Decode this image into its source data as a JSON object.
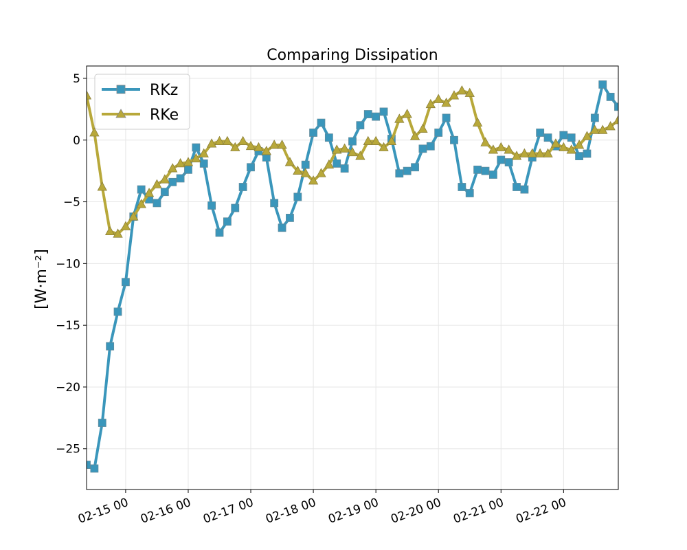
{
  "chart_data": {
    "type": "line",
    "title": "Comparing Dissipation",
    "xlabel": "",
    "ylabel": "[W·m⁻²]",
    "grid": true,
    "legend_position": "upper-left",
    "x_ticks": [
      {
        "label": "02-15 00",
        "day": 15
      },
      {
        "label": "02-16 00",
        "day": 16
      },
      {
        "label": "02-17 00",
        "day": 17
      },
      {
        "label": "02-18 00",
        "day": 18
      },
      {
        "label": "02-19 00",
        "day": 19
      },
      {
        "label": "02-20 00",
        "day": 20
      },
      {
        "label": "02-21 00",
        "day": 21
      },
      {
        "label": "02-22 00",
        "day": 22
      }
    ],
    "y_ticks": [
      -25,
      -20,
      -15,
      -10,
      -5,
      0,
      5
    ],
    "xlim": [
      14.375,
      22.875
    ],
    "ylim": [
      -28.3,
      6.0
    ],
    "x_start": 14.375,
    "x_step": 0.125,
    "series": [
      {
        "name": "RKz",
        "color": "#3a96bb",
        "marker": "square",
        "values": [
          -26.3,
          -26.6,
          -22.9,
          -16.7,
          -13.9,
          -11.5,
          -6.2,
          -4.0,
          -4.8,
          -5.1,
          -4.2,
          -3.4,
          -3.1,
          -2.4,
          -0.6,
          -1.9,
          -5.3,
          -7.5,
          -6.6,
          -5.5,
          -3.8,
          -2.2,
          -0.9,
          -1.4,
          -5.1,
          -7.1,
          -6.3,
          -4.6,
          -2.0,
          0.6,
          1.4,
          0.2,
          -1.9,
          -2.3,
          -0.1,
          1.2,
          2.1,
          1.9,
          2.3,
          0.1,
          -2.7,
          -2.5,
          -2.2,
          -0.7,
          -0.5,
          0.6,
          1.8,
          0.0,
          -3.8,
          -4.3,
          -2.4,
          -2.5,
          -2.8,
          -1.6,
          -1.8,
          -3.8,
          -4.0,
          -1.4,
          0.6,
          0.2,
          -0.5,
          0.4,
          0.2,
          -1.3,
          -1.1,
          1.8,
          4.5,
          3.5,
          2.7
        ]
      },
      {
        "name": "RKe",
        "color": "#b8a83a",
        "marker": "triangle",
        "values": [
          3.6,
          0.6,
          -3.8,
          -7.4,
          -7.6,
          -7.0,
          -6.2,
          -5.2,
          -4.3,
          -3.6,
          -3.2,
          -2.3,
          -1.9,
          -1.8,
          -1.5,
          -1.1,
          -0.3,
          -0.1,
          -0.1,
          -0.6,
          -0.1,
          -0.5,
          -0.6,
          -0.9,
          -0.4,
          -0.4,
          -1.8,
          -2.5,
          -2.7,
          -3.3,
          -2.7,
          -2.0,
          -0.8,
          -0.7,
          -1.0,
          -1.3,
          -0.1,
          -0.1,
          -0.6,
          -0.1,
          1.7,
          2.1,
          0.3,
          0.9,
          2.9,
          3.3,
          3.0,
          3.6,
          4.0,
          3.8,
          1.4,
          -0.2,
          -0.8,
          -0.6,
          -0.8,
          -1.3,
          -1.1,
          -1.1,
          -1.1,
          -1.1,
          -0.3,
          -0.6,
          -0.8,
          -0.4,
          0.3,
          0.8,
          0.8,
          1.1,
          1.6
        ]
      }
    ]
  }
}
